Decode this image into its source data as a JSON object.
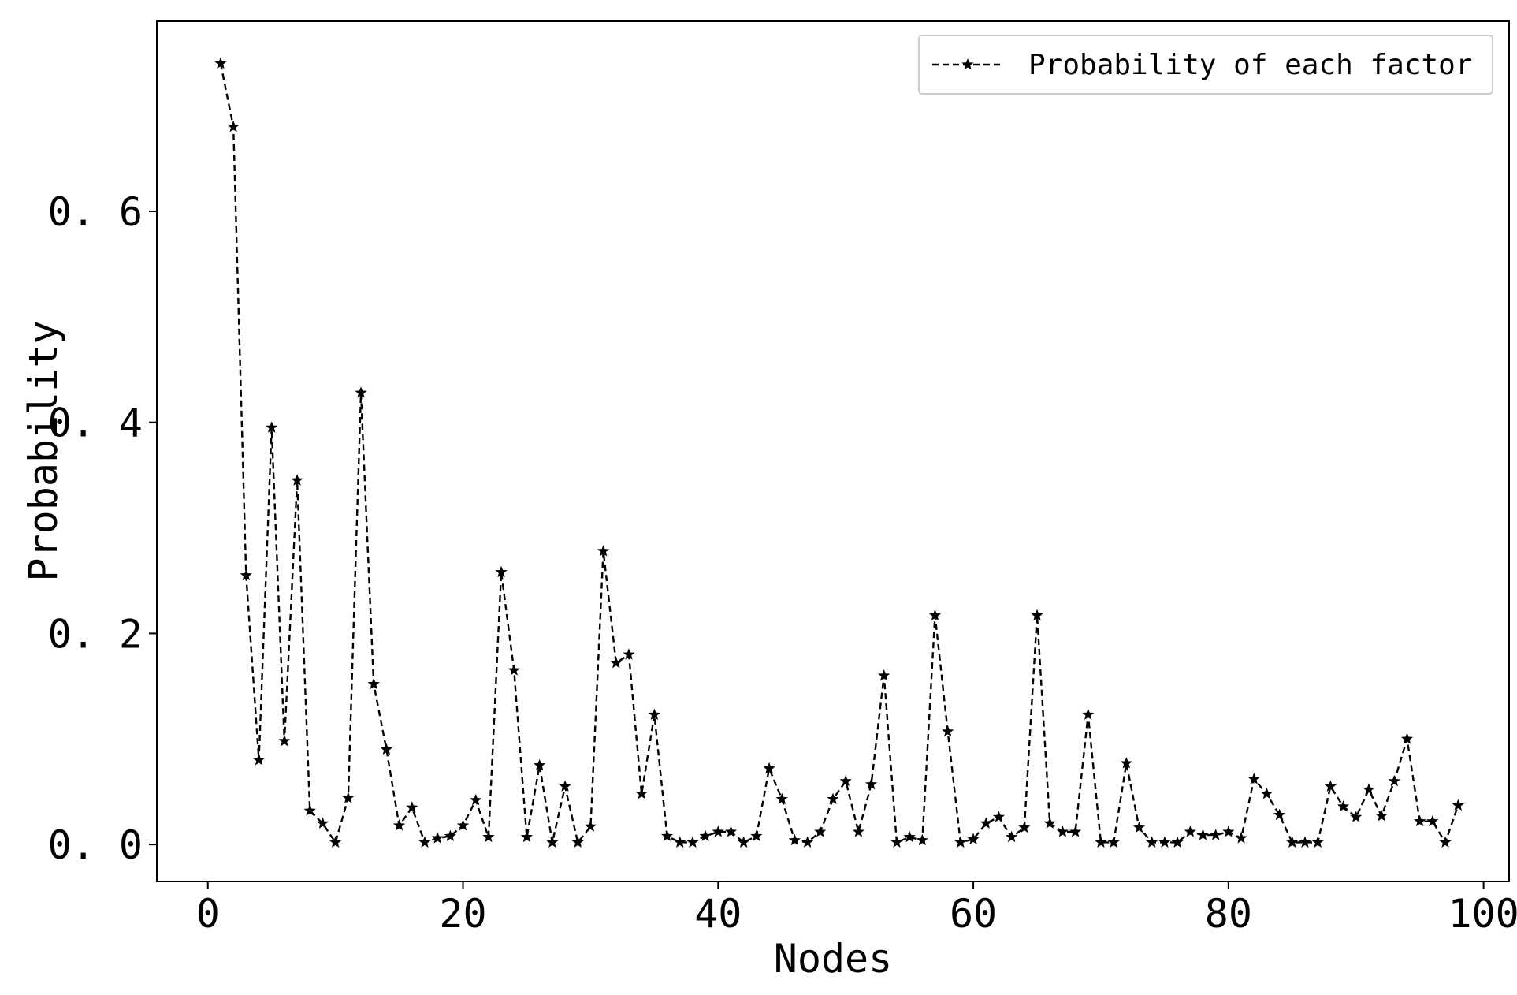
{
  "chart_data": {
    "type": "line",
    "xlabel": "Nodes",
    "ylabel": "Probability",
    "xlim": [
      -4,
      102
    ],
    "ylim": [
      -0.035,
      0.78
    ],
    "xticks": [
      0,
      20,
      40,
      60,
      80,
      100
    ],
    "yticks": [
      0.0,
      0.2,
      0.4,
      0.6
    ],
    "xtick_labels": [
      "0",
      "20",
      "40",
      "60",
      "80",
      "100"
    ],
    "ytick_labels": [
      "0. 0",
      "0. 2",
      "0. 4",
      "0. 6"
    ],
    "grid": false,
    "legend_position": "top-right",
    "series": [
      {
        "name": "Probability of each factor",
        "line_style": "dashed",
        "marker": "star",
        "color": "#000000",
        "x": [
          1,
          2,
          3,
          4,
          5,
          6,
          7,
          8,
          9,
          10,
          11,
          12,
          13,
          14,
          15,
          16,
          17,
          18,
          19,
          20,
          21,
          22,
          23,
          24,
          25,
          26,
          27,
          28,
          29,
          30,
          31,
          32,
          33,
          34,
          35,
          36,
          37,
          38,
          39,
          40,
          41,
          42,
          43,
          44,
          45,
          46,
          47,
          48,
          49,
          50,
          51,
          52,
          53,
          54,
          55,
          56,
          57,
          58,
          59,
          60,
          61,
          62,
          63,
          64,
          65,
          66,
          67,
          68,
          69,
          70,
          71,
          72,
          73,
          74,
          75,
          76,
          77,
          78,
          79,
          80,
          81,
          82,
          83,
          84,
          85,
          86,
          87,
          88,
          89,
          90,
          91,
          92,
          93,
          94,
          95,
          96,
          97,
          98
        ],
        "y": [
          0.74,
          0.68,
          0.255,
          0.08,
          0.395,
          0.098,
          0.345,
          0.032,
          0.02,
          0.002,
          0.044,
          0.428,
          0.152,
          0.09,
          0.018,
          0.035,
          0.002,
          0.006,
          0.008,
          0.018,
          0.042,
          0.007,
          0.258,
          0.165,
          0.007,
          0.075,
          0.002,
          0.055,
          0.002,
          0.017,
          0.278,
          0.172,
          0.18,
          0.048,
          0.123,
          0.008,
          0.002,
          0.002,
          0.008,
          0.012,
          0.012,
          0.002,
          0.008,
          0.072,
          0.043,
          0.004,
          0.002,
          0.012,
          0.043,
          0.06,
          0.012,
          0.057,
          0.16,
          0.002,
          0.007,
          0.004,
          0.217,
          0.107,
          0.002,
          0.005,
          0.02,
          0.026,
          0.007,
          0.016,
          0.217,
          0.02,
          0.012,
          0.012,
          0.123,
          0.002,
          0.002,
          0.077,
          0.016,
          0.002,
          0.002,
          0.002,
          0.012,
          0.009,
          0.009,
          0.012,
          0.006,
          0.062,
          0.048,
          0.028,
          0.002,
          0.002,
          0.002,
          0.055,
          0.036,
          0.026,
          0.052,
          0.027,
          0.06,
          0.1,
          0.022,
          0.022,
          0.002,
          0.037
        ]
      }
    ]
  }
}
